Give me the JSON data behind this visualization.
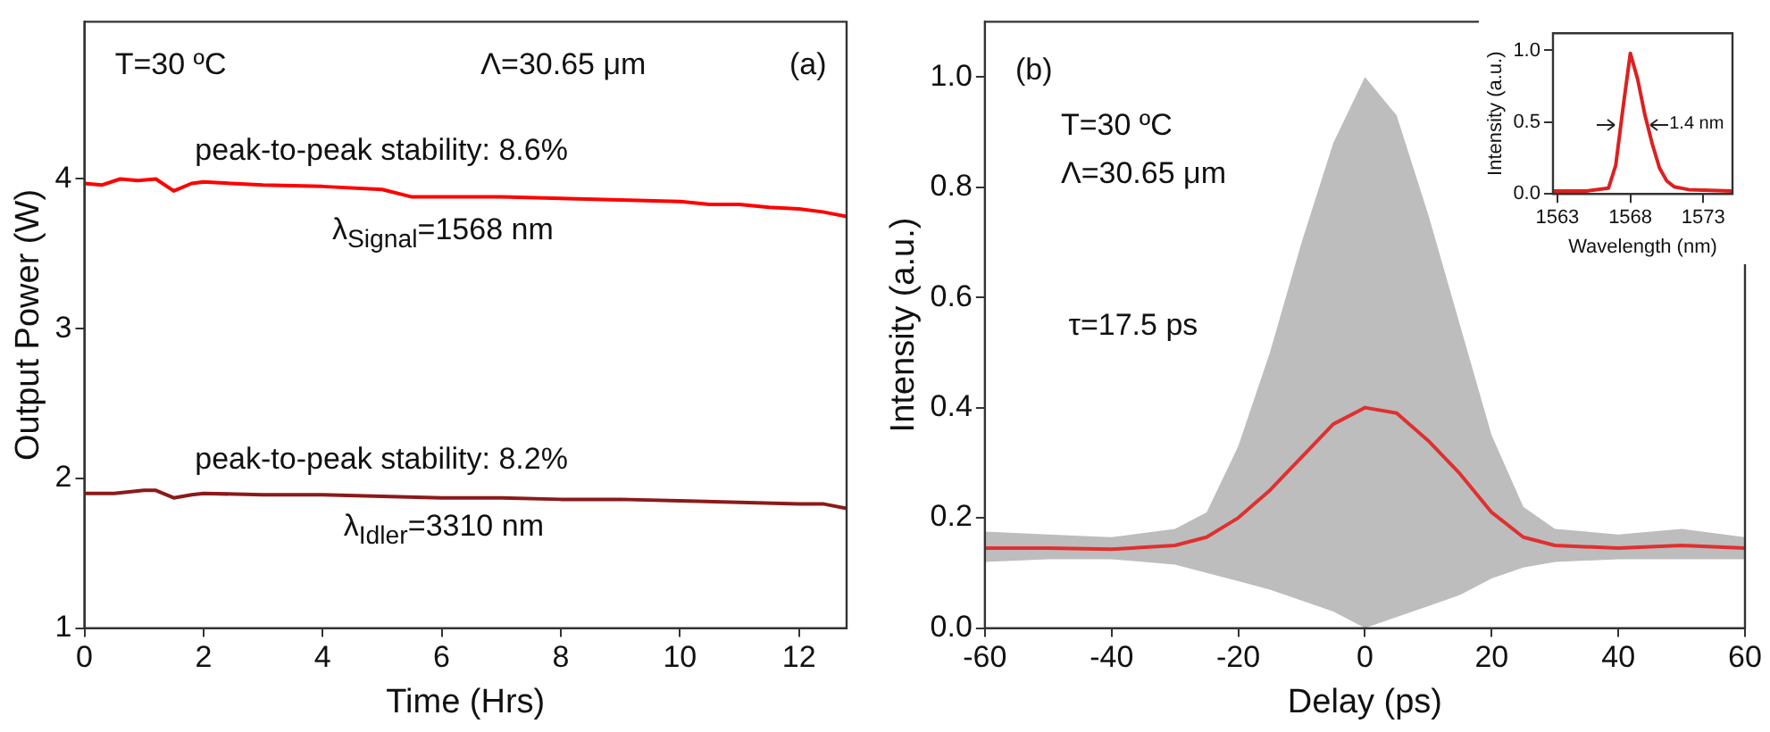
{
  "chart_data": [
    {
      "type": "line",
      "xlabel": "Time (Hrs)",
      "ylabel": "Output Power (W)",
      "xlim": [
        0,
        12.8
      ],
      "ylim": [
        1,
        5.05
      ],
      "xticks": [
        0,
        2,
        4,
        6,
        8,
        10,
        12
      ],
      "yticks": [
        1,
        2,
        3,
        4
      ],
      "grid": false,
      "legend": false,
      "marker": "none",
      "annotations": [
        "T=30 ºC",
        "Λ=30.65 μm",
        "(a)",
        "peak-to-peak stability: 8.6%",
        "λ$_{Signal}$=1568 nm",
        "peak-to-peak stability: 8.2%",
        "λ$_{Idler}$=3310 nm"
      ],
      "series": [
        {
          "color": "#ff0000",
          "x": [
            0,
            0.3,
            0.6,
            0.9,
            1.2,
            1.5,
            1.8,
            2,
            3,
            4,
            5,
            5.5,
            6,
            7,
            8,
            9,
            10,
            10.5,
            11,
            11.5,
            12,
            12.4,
            12.8
          ],
          "values": [
            3.97,
            3.96,
            4.0,
            3.99,
            4.0,
            3.92,
            3.97,
            3.98,
            3.96,
            3.95,
            3.93,
            3.88,
            3.88,
            3.88,
            3.87,
            3.86,
            3.85,
            3.83,
            3.83,
            3.81,
            3.8,
            3.78,
            3.75
          ]
        },
        {
          "color": "#8b1a1a",
          "x": [
            0,
            0.5,
            1,
            1.2,
            1.5,
            1.8,
            2,
            3,
            4,
            5,
            6,
            7,
            8,
            9,
            10,
            11,
            12,
            12.4,
            12.8
          ],
          "values": [
            1.9,
            1.9,
            1.92,
            1.92,
            1.87,
            1.89,
            1.9,
            1.89,
            1.89,
            1.88,
            1.87,
            1.87,
            1.86,
            1.86,
            1.85,
            1.84,
            1.83,
            1.83,
            1.8
          ]
        }
      ]
    },
    {
      "type": "line",
      "xlabel": "Delay (ps)",
      "ylabel": "Intensity (a.u.)",
      "xlim": [
        -60,
        60
      ],
      "ylim": [
        0,
        1.1
      ],
      "xticks": [
        -60,
        -40,
        -20,
        0,
        20,
        40,
        60
      ],
      "yticks": [
        {
          "value": 0,
          "label": "0.0"
        },
        {
          "value": 0.2,
          "label": "0.2"
        },
        {
          "value": 0.4,
          "label": "0.4"
        },
        {
          "value": 0.6,
          "label": "0.6"
        },
        {
          "value": 0.8,
          "label": "0.8"
        },
        {
          "value": 1,
          "label": "1.0"
        }
      ],
      "grid": false,
      "legend": false,
      "marker": "none",
      "annotations": [
        "(b)",
        "T=30 ºC",
        "Λ=30.65 μm",
        "τ=17.5 ps"
      ],
      "series": [
        {
          "color": "#e03030",
          "x": [
            -60,
            -50,
            -40,
            -30,
            -25,
            -20,
            -15,
            -10,
            -5,
            0,
            5,
            10,
            15,
            20,
            25,
            30,
            40,
            50,
            60
          ],
          "values": [
            0.145,
            0.145,
            0.143,
            0.15,
            0.165,
            0.2,
            0.25,
            0.31,
            0.37,
            0.4,
            0.39,
            0.34,
            0.28,
            0.21,
            0.165,
            0.15,
            0.145,
            0.15,
            0.145
          ],
          "lower": [
            0.12,
            0.125,
            0.125,
            0.115,
            0.1,
            0.085,
            0.07,
            0.05,
            0.03,
            0.0,
            0.02,
            0.04,
            0.06,
            0.09,
            0.11,
            0.12,
            0.125,
            0.125,
            0.125
          ],
          "upper": [
            0.175,
            0.17,
            0.165,
            0.18,
            0.21,
            0.33,
            0.5,
            0.7,
            0.88,
            1.0,
            0.93,
            0.75,
            0.55,
            0.35,
            0.22,
            0.18,
            0.17,
            0.18,
            0.165
          ]
        }
      ]
    },
    {
      "type": "line",
      "xlabel": "Wavelength (nm)",
      "ylabel": "Intensity (a.u.)",
      "xlim": [
        1562.7,
        1575
      ],
      "ylim": [
        0,
        1.12
      ],
      "xticks": [
        1563,
        1568,
        1573
      ],
      "yticks": [
        {
          "value": 0,
          "label": "0.0"
        },
        {
          "value": 0.5,
          "label": "0.5"
        },
        {
          "value": 1,
          "label": "1.0"
        }
      ],
      "grid": false,
      "legend": false,
      "marker": "none",
      "annotations": [
        "1.4 nm"
      ],
      "series": [
        {
          "color": "#dd2020",
          "x": [
            1562.7,
            1565,
            1566.5,
            1567,
            1567.5,
            1568,
            1568.5,
            1569,
            1569.5,
            1570,
            1570.5,
            1571,
            1572,
            1575
          ],
          "values": [
            0.02,
            0.02,
            0.04,
            0.2,
            0.6,
            0.98,
            0.8,
            0.55,
            0.35,
            0.18,
            0.09,
            0.05,
            0.03,
            0.02
          ]
        }
      ]
    }
  ]
}
